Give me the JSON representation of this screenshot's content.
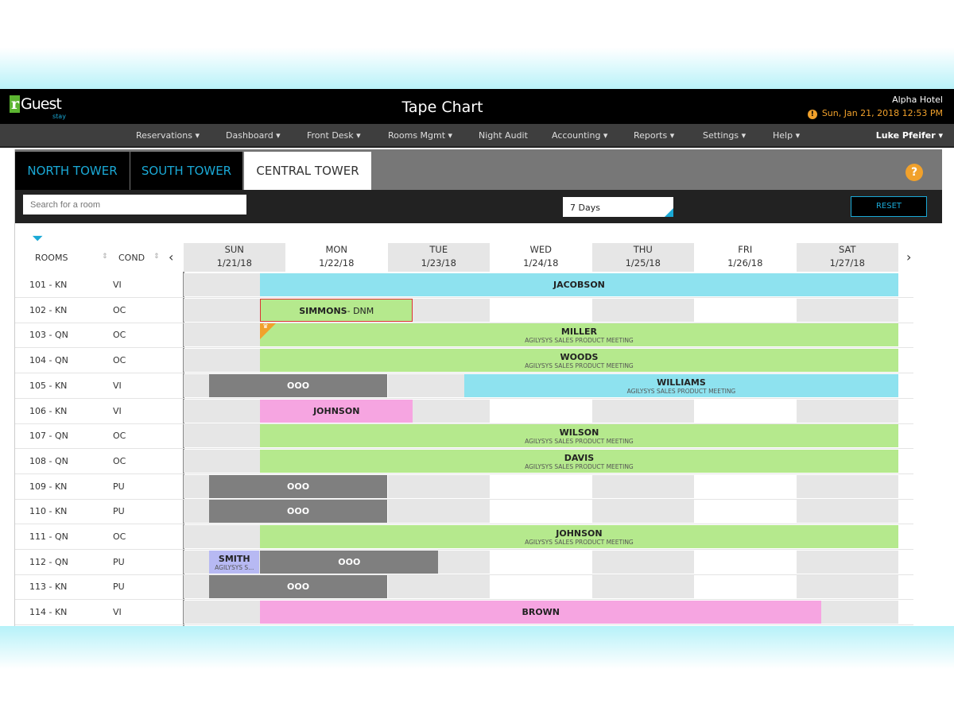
{
  "app": {
    "logo": "rGuest",
    "logo_sub": "stay",
    "title": "Tape Chart",
    "hotel": "Alpha Hotel",
    "datetime": "Sun, Jan 21, 2018 12:53 PM"
  },
  "nav": {
    "items": [
      "Reservations ▾",
      "Dashboard ▾",
      "Front Desk ▾",
      "Rooms Mgmt ▾",
      "Night Audit",
      "Accounting ▾",
      "Reports ▾",
      "Settings ▾",
      "Help ▾"
    ],
    "user": "Luke Pfeifer ▾"
  },
  "tabs": [
    "NORTH TOWER",
    "SOUTH TOWER",
    "CENTRAL TOWER"
  ],
  "active_tab": 2,
  "toolbar": {
    "search_placeholder": "Search for a room",
    "range": "7 Days",
    "reset": "RESET"
  },
  "columns": {
    "rooms": "ROOMS",
    "cond": "COND"
  },
  "days": [
    {
      "d": "SUN",
      "date": "1/21/18"
    },
    {
      "d": "MON",
      "date": "1/22/18"
    },
    {
      "d": "TUE",
      "date": "1/23/18"
    },
    {
      "d": "WED",
      "date": "1/24/18"
    },
    {
      "d": "THU",
      "date": "1/25/18"
    },
    {
      "d": "FRI",
      "date": "1/26/18"
    },
    {
      "d": "SAT",
      "date": "1/27/18"
    }
  ],
  "colors": {
    "cyan": "#8ee2ef",
    "green": "#b5e98d",
    "pink": "#f6a5e1",
    "grey": "#7f7f7f",
    "lavender": "#b7b9f3",
    "accent": "#1aa9d6"
  },
  "rows": [
    {
      "room": "101 - KN",
      "cond": "VI",
      "bars": [
        {
          "name": "JACOBSON",
          "start": 0.75,
          "end": 7,
          "color": "cyan"
        }
      ]
    },
    {
      "room": "102 - KN",
      "cond": "OC",
      "bars": [
        {
          "name": "SIMMONS",
          "suffix": "- DNM",
          "start": 0.75,
          "end": 2.25,
          "color": "green",
          "outlined": true
        }
      ]
    },
    {
      "room": "103 - QN",
      "cond": "OC",
      "bars": [
        {
          "name": "MILLER",
          "sub": "AGILYSYS SALES PRODUCT MEETING",
          "start": 0.75,
          "end": 7,
          "color": "green",
          "vip": true
        }
      ]
    },
    {
      "room": "104 - QN",
      "cond": "OC",
      "bars": [
        {
          "name": "WOODS",
          "sub": "AGILYSYS SALES PRODUCT MEETING",
          "start": 0.75,
          "end": 7,
          "color": "green"
        }
      ]
    },
    {
      "room": "105 - KN",
      "cond": "VI",
      "bars": [
        {
          "name": "OOO",
          "start": 0.25,
          "end": 2,
          "color": "grey"
        },
        {
          "name": "WILLIAMS",
          "sub": "AGILYSYS SALES PRODUCT MEETING",
          "start": 2.75,
          "end": 7,
          "color": "cyan"
        }
      ]
    },
    {
      "room": "106 - KN",
      "cond": "VI",
      "bars": [
        {
          "name": "JOHNSON",
          "start": 0.75,
          "end": 2.25,
          "color": "pink"
        }
      ]
    },
    {
      "room": "107 - QN",
      "cond": "OC",
      "bars": [
        {
          "name": "WILSON",
          "sub": "AGILYSYS SALES PRODUCT MEETING",
          "start": 0.75,
          "end": 7,
          "color": "green"
        }
      ]
    },
    {
      "room": "108 - QN",
      "cond": "OC",
      "bars": [
        {
          "name": "DAVIS",
          "sub": "AGILYSYS SALES PRODUCT MEETING",
          "start": 0.75,
          "end": 7,
          "color": "green"
        }
      ]
    },
    {
      "room": "109 - KN",
      "cond": "PU",
      "bars": [
        {
          "name": "OOO",
          "start": 0.25,
          "end": 2,
          "color": "grey"
        }
      ]
    },
    {
      "room": "110 - KN",
      "cond": "PU",
      "bars": [
        {
          "name": "OOO",
          "start": 0.25,
          "end": 2,
          "color": "grey"
        }
      ]
    },
    {
      "room": "111 - QN",
      "cond": "OC",
      "bars": [
        {
          "name": "JOHNSON",
          "sub": "AGILYSYS SALES PRODUCT MEETING",
          "start": 0.75,
          "end": 7,
          "color": "green"
        }
      ]
    },
    {
      "room": "112 - QN",
      "cond": "PU",
      "bars": [
        {
          "name": "SMITH",
          "sub": "AGILYSYS S...",
          "start": 0.25,
          "end": 0.75,
          "color": "lavender"
        },
        {
          "name": "OOO",
          "start": 0.75,
          "end": 2.5,
          "color": "grey"
        }
      ]
    },
    {
      "room": "113 - KN",
      "cond": "PU",
      "bars": [
        {
          "name": "OOO",
          "start": 0.25,
          "end": 2,
          "color": "grey"
        }
      ]
    },
    {
      "room": "114 - KN",
      "cond": "VI",
      "bars": [
        {
          "name": "BROWN",
          "start": 0.75,
          "end": 6.25,
          "color": "pink"
        }
      ]
    }
  ]
}
